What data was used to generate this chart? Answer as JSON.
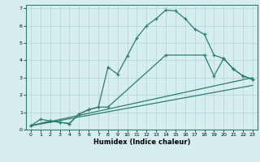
{
  "xlabel": "Humidex (Indice chaleur)",
  "bg_color": "#d6eef0",
  "grid_color": "#b8d8dc",
  "line_color": "#2e7d6e",
  "xlim": [
    -0.5,
    23.5
  ],
  "ylim": [
    0,
    7.2
  ],
  "xticks": [
    0,
    1,
    2,
    3,
    4,
    5,
    6,
    7,
    8,
    9,
    10,
    11,
    12,
    13,
    14,
    15,
    16,
    17,
    18,
    19,
    20,
    21,
    22,
    23
  ],
  "yticks": [
    0,
    1,
    2,
    3,
    4,
    5,
    6,
    7
  ],
  "line1_x": [
    0,
    1,
    2,
    3,
    4,
    5,
    6,
    7,
    8,
    9,
    10,
    11,
    12,
    13,
    14,
    15,
    16,
    17,
    18,
    19,
    20,
    21,
    22,
    23
  ],
  "line1_y": [
    0.22,
    0.6,
    0.5,
    0.42,
    0.35,
    0.9,
    1.15,
    1.3,
    3.6,
    3.2,
    4.25,
    5.3,
    6.0,
    6.4,
    6.9,
    6.85,
    6.4,
    5.8,
    5.5,
    4.3,
    4.1,
    3.5,
    3.1,
    2.9
  ],
  "line2_x": [
    0,
    2,
    3,
    4,
    5,
    6,
    7,
    8,
    14,
    18,
    19,
    20,
    21,
    22,
    23
  ],
  "line2_y": [
    0.22,
    0.5,
    0.42,
    0.35,
    0.9,
    1.15,
    1.3,
    1.3,
    4.3,
    4.3,
    3.1,
    4.1,
    3.5,
    3.1,
    2.9
  ],
  "line3_x": [
    0,
    23
  ],
  "line3_y": [
    0.22,
    3.0
  ],
  "line4_x": [
    0,
    23
  ],
  "line4_y": [
    0.22,
    2.55
  ]
}
